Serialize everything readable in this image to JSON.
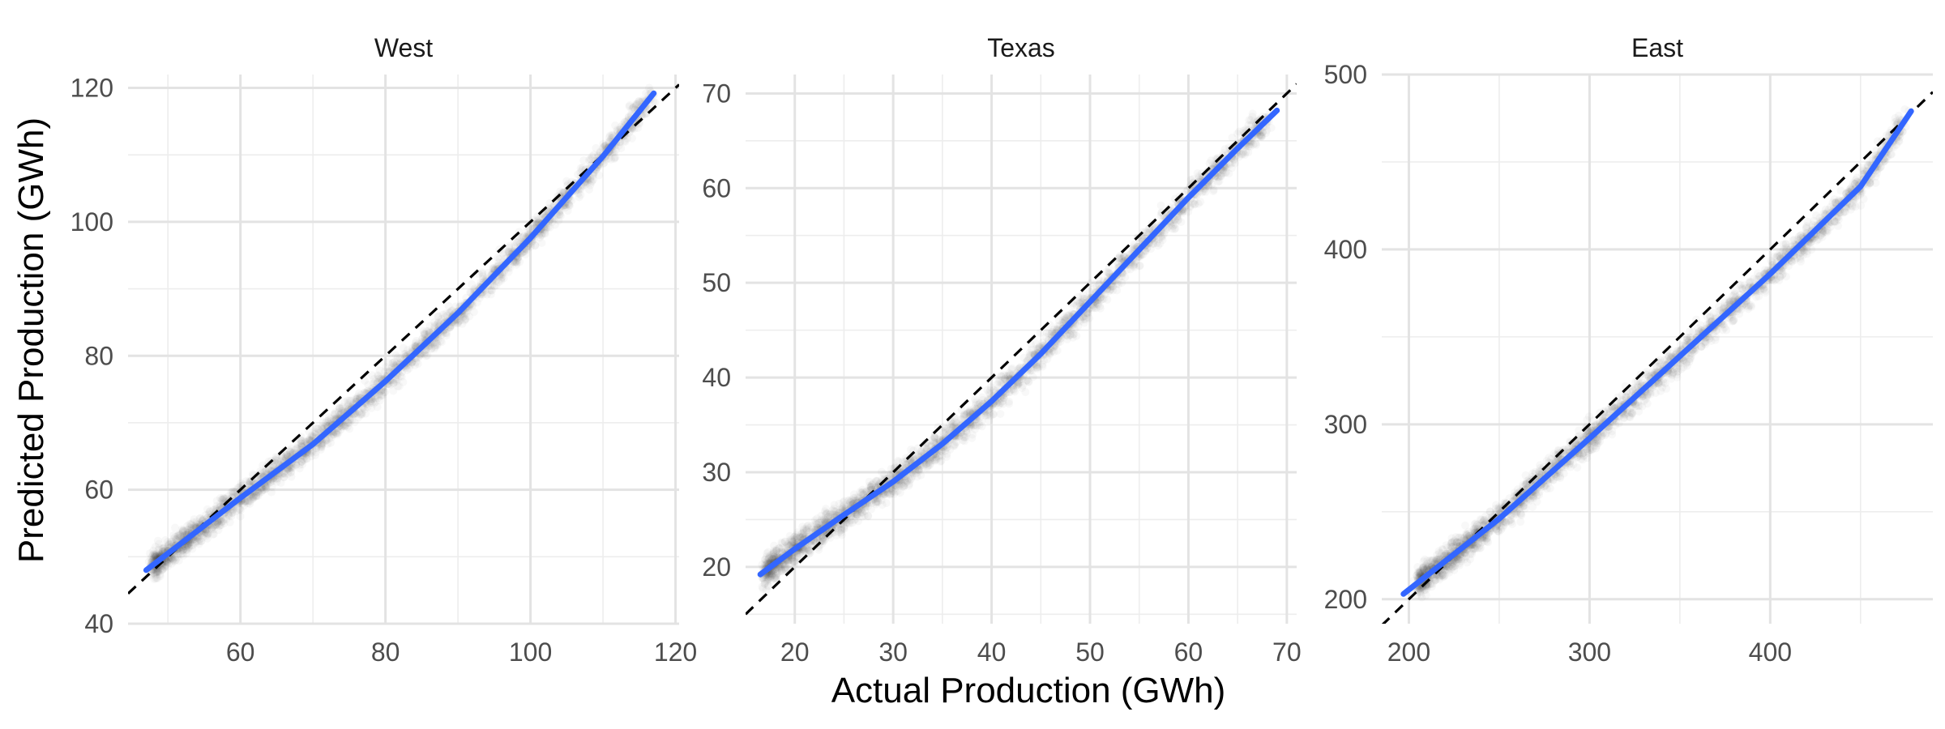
{
  "chart_data": {
    "type": "scatter",
    "xlabel": "Actual Production (GWh)",
    "ylabel": "Predicted Production (GWh)",
    "grid": true,
    "legend": "none",
    "colors": {
      "points": "#333333",
      "fit": "#3366ff",
      "identity": "#000000"
    },
    "panels": [
      {
        "title": "West",
        "xlim": [
          44.5,
          120.5
        ],
        "ylim": [
          40,
          122
        ],
        "x_ticks": [
          60,
          80,
          100,
          120
        ],
        "y_ticks": [
          40,
          60,
          80,
          100,
          120
        ],
        "point_range": [
          48,
          117
        ],
        "fit_line": [
          [
            47,
            48
          ],
          [
            60,
            58.8
          ],
          [
            70,
            66.8
          ],
          [
            80,
            76.2
          ],
          [
            90,
            86.4
          ],
          [
            100,
            97.6
          ],
          [
            110,
            109.8
          ],
          [
            117,
            119.2
          ]
        ],
        "identity_line": [
          [
            44.5,
            44.5
          ],
          [
            120.5,
            120.5
          ]
        ]
      },
      {
        "title": "Texas",
        "xlim": [
          15,
          71
        ],
        "ylim": [
          14,
          72
        ],
        "x_ticks": [
          20,
          30,
          40,
          50,
          60,
          70
        ],
        "y_ticks": [
          20,
          30,
          40,
          50,
          60,
          70
        ],
        "point_range": [
          17,
          68
        ],
        "fit_line": [
          [
            16.5,
            19.2
          ],
          [
            20,
            21.9
          ],
          [
            25,
            25.5
          ],
          [
            30,
            29
          ],
          [
            35,
            33
          ],
          [
            40,
            37.5
          ],
          [
            45,
            42.5
          ],
          [
            50,
            48
          ],
          [
            55,
            53.5
          ],
          [
            60,
            59
          ],
          [
            65,
            64.2
          ],
          [
            69,
            68.2
          ]
        ],
        "identity_line": [
          [
            15,
            15
          ],
          [
            71,
            71
          ]
        ]
      },
      {
        "title": "East",
        "xlim": [
          185,
          490
        ],
        "ylim": [
          186,
          500
        ],
        "x_ticks": [
          200,
          300,
          400
        ],
        "y_ticks": [
          200,
          300,
          400,
          500
        ],
        "point_range": [
          205,
          475
        ],
        "fit_line": [
          [
            197,
            203
          ],
          [
            250,
            246
          ],
          [
            300,
            292
          ],
          [
            350,
            339
          ],
          [
            400,
            386
          ],
          [
            450,
            436
          ],
          [
            478,
            479
          ]
        ],
        "identity_line": [
          [
            185,
            185
          ],
          [
            490,
            490
          ]
        ]
      }
    ]
  }
}
